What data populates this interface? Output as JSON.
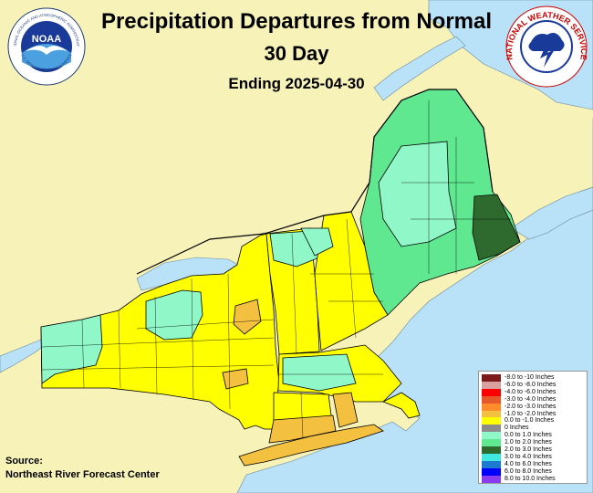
{
  "title": {
    "line1": "Precipitation Departures from Normal",
    "line2": "30 Day",
    "line3": "Ending 2025-04-30"
  },
  "source": {
    "label": "Source:",
    "name": "Northeast River Forecast Center"
  },
  "logos": {
    "noaa_text": "NOAA",
    "noaa_ring": "NATIONAL OCEANIC AND ATMOSPHERIC ADMINISTRATION",
    "noaa_ring_bottom": "U.S. DEPARTMENT OF COMMERCE",
    "nws_ring": "NATIONAL WEATHER SERVICE"
  },
  "legend": [
    {
      "label": "-8.0 to -10 Inches",
      "color": "#7b1a1a"
    },
    {
      "label": "-6.0 to -8.0 Inches",
      "color": "#d9a0a0"
    },
    {
      "label": "-4.0 to -6.0 Inches",
      "color": "#ff0000"
    },
    {
      "label": "-3.0 to -4.0 Inches",
      "color": "#e6572a"
    },
    {
      "label": "-2.0 to -3.0 Inches",
      "color": "#ff8c2a"
    },
    {
      "label": "-1.0 to -2.0 Inches",
      "color": "#f4c040"
    },
    {
      "label": "0.0 to -1.0 Inches",
      "color": "#ffff00"
    },
    {
      "label": "0 Inches",
      "color": "#8c8c8c"
    },
    {
      "label": "0.0 to 1.0 Inches",
      "color": "#90f8c8"
    },
    {
      "label": "1.0 to 2.0 Inches",
      "color": "#60e890"
    },
    {
      "label": "2.0 to 3.0 Inches",
      "color": "#2e6a2e"
    },
    {
      "label": "3.0 to 4.0 Inches",
      "color": "#40e8e0"
    },
    {
      "label": "4.0 to 6.0 Inches",
      "color": "#1e7ad0"
    },
    {
      "label": "6.0 to 8.0 Inches",
      "color": "#0000ff"
    },
    {
      "label": "8.0 to 10.0 Inches",
      "color": "#8a3cf0"
    }
  ],
  "colors": {
    "land": "#f7f3b8",
    "water": "#b9e1f7",
    "border": "#000000"
  }
}
